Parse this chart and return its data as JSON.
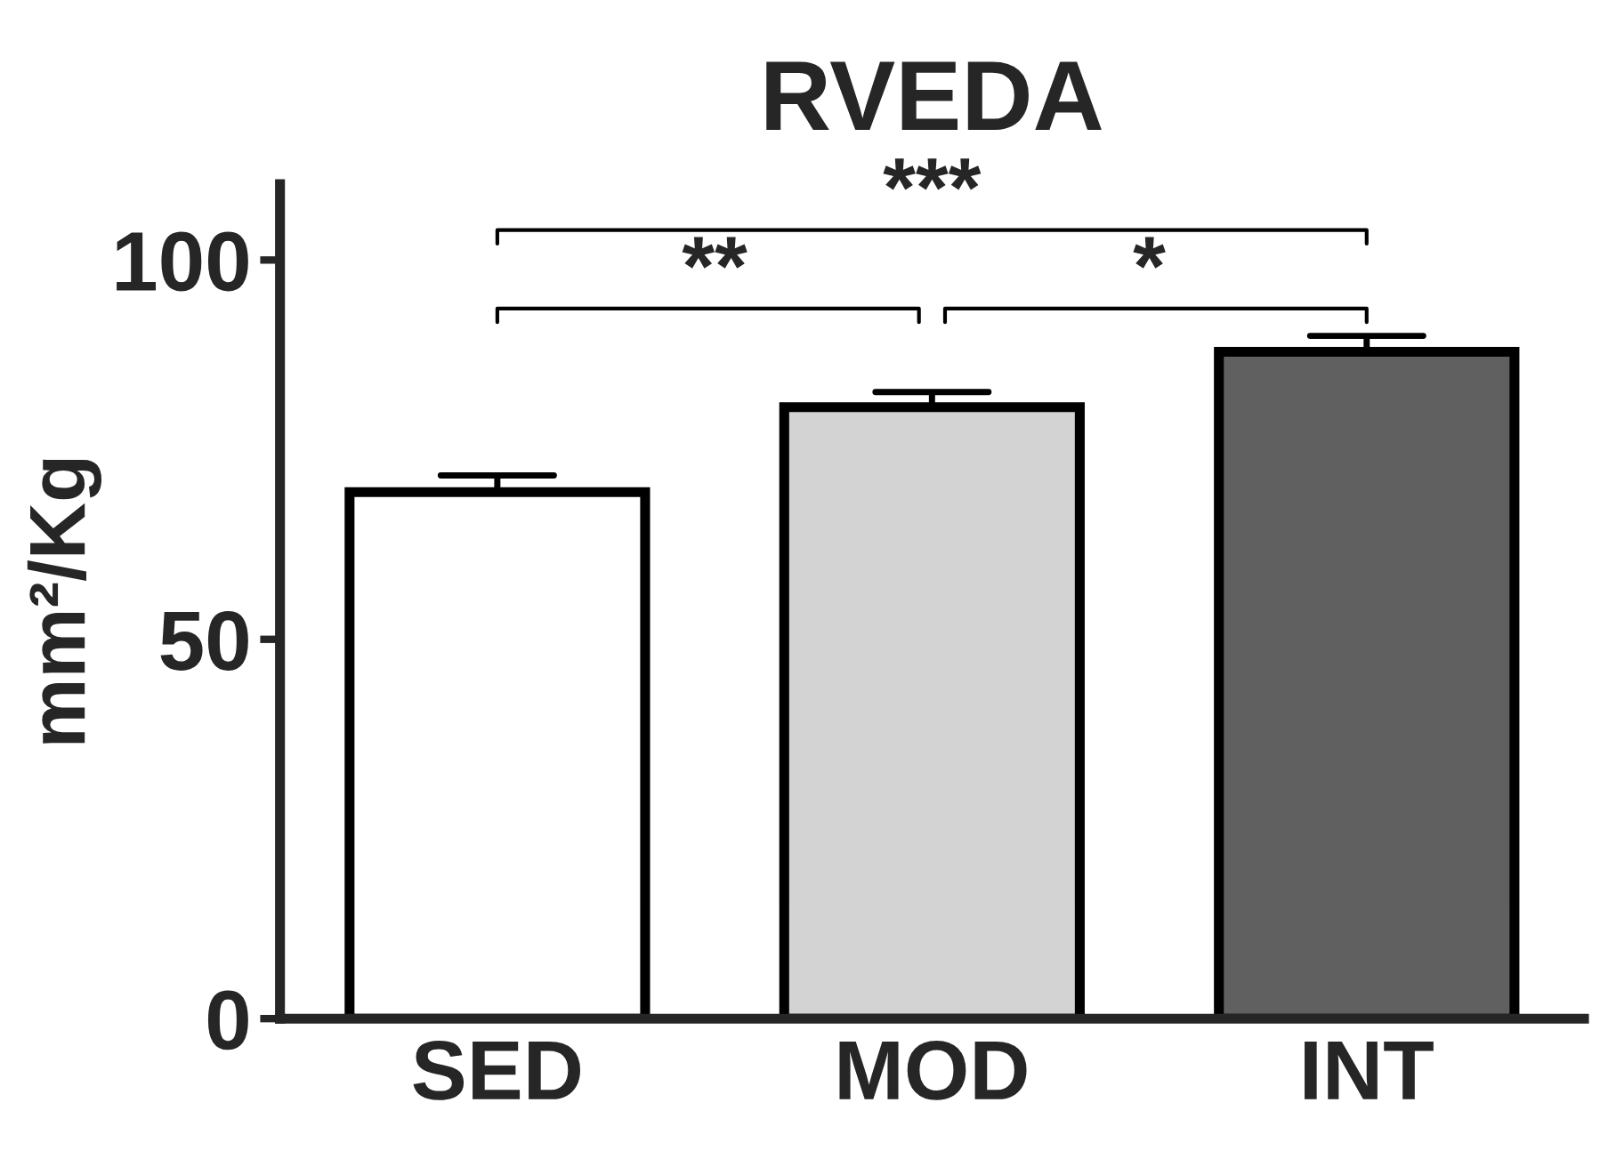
{
  "chart_data": {
    "type": "bar",
    "title": "RVEDA",
    "ylabel": "mm²/Kg",
    "categories": [
      "SED",
      "MOD",
      "INT"
    ],
    "values": [
      69.4,
      80.6,
      87.9
    ],
    "colors": [
      "#ffffff",
      "#d3d3d3",
      "#606060"
    ],
    "errors": [
      [
        69.4,
        71.6
      ],
      [
        80.6,
        82.6
      ],
      [
        87.9,
        90.0
      ]
    ],
    "ylim": [
      0,
      110
    ],
    "yticks": [
      0,
      50,
      100
    ],
    "grid": false,
    "annotations": [
      "**",
      "*",
      "***"
    ]
  }
}
